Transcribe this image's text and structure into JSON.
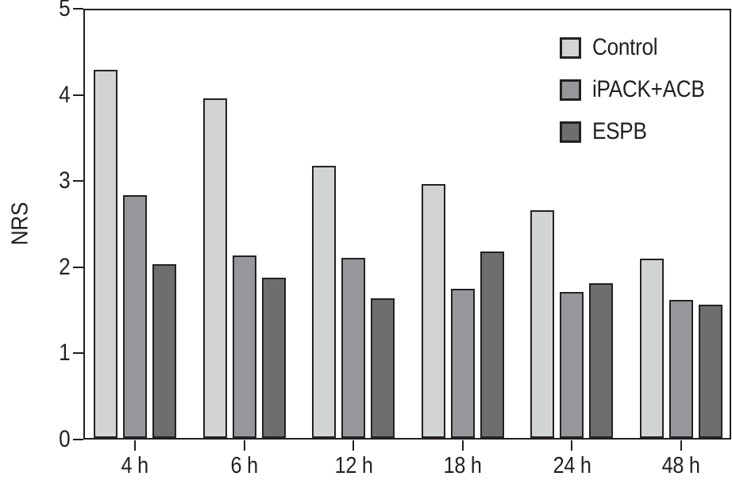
{
  "figure": {
    "y_axis_title": "NRS"
  },
  "chart_data": {
    "type": "bar",
    "title": "",
    "xlabel": "",
    "ylabel": "NRS",
    "ylim": [
      0,
      5
    ],
    "yticks": [
      0,
      1,
      2,
      3,
      4,
      5
    ],
    "grid": false,
    "legend_position": "top-right",
    "categories": [
      "4 h",
      "6 h",
      "12 h",
      "18 h",
      "24 h",
      "48 h"
    ],
    "series": [
      {
        "name": "Control",
        "color": "#d2d3d5",
        "values": [
          4.3,
          3.97,
          3.18,
          2.97,
          2.66,
          2.1
        ]
      },
      {
        "name": "iPACK+ACB",
        "color": "#97979b",
        "values": [
          2.84,
          2.13,
          2.11,
          1.74,
          1.71,
          1.61
        ]
      },
      {
        "name": "ESPB",
        "color": "#6e6e71",
        "values": [
          2.03,
          1.87,
          1.63,
          2.18,
          1.81,
          1.56
        ]
      }
    ],
    "bar_border_color": "#242124",
    "axis_color": "#231f20"
  }
}
